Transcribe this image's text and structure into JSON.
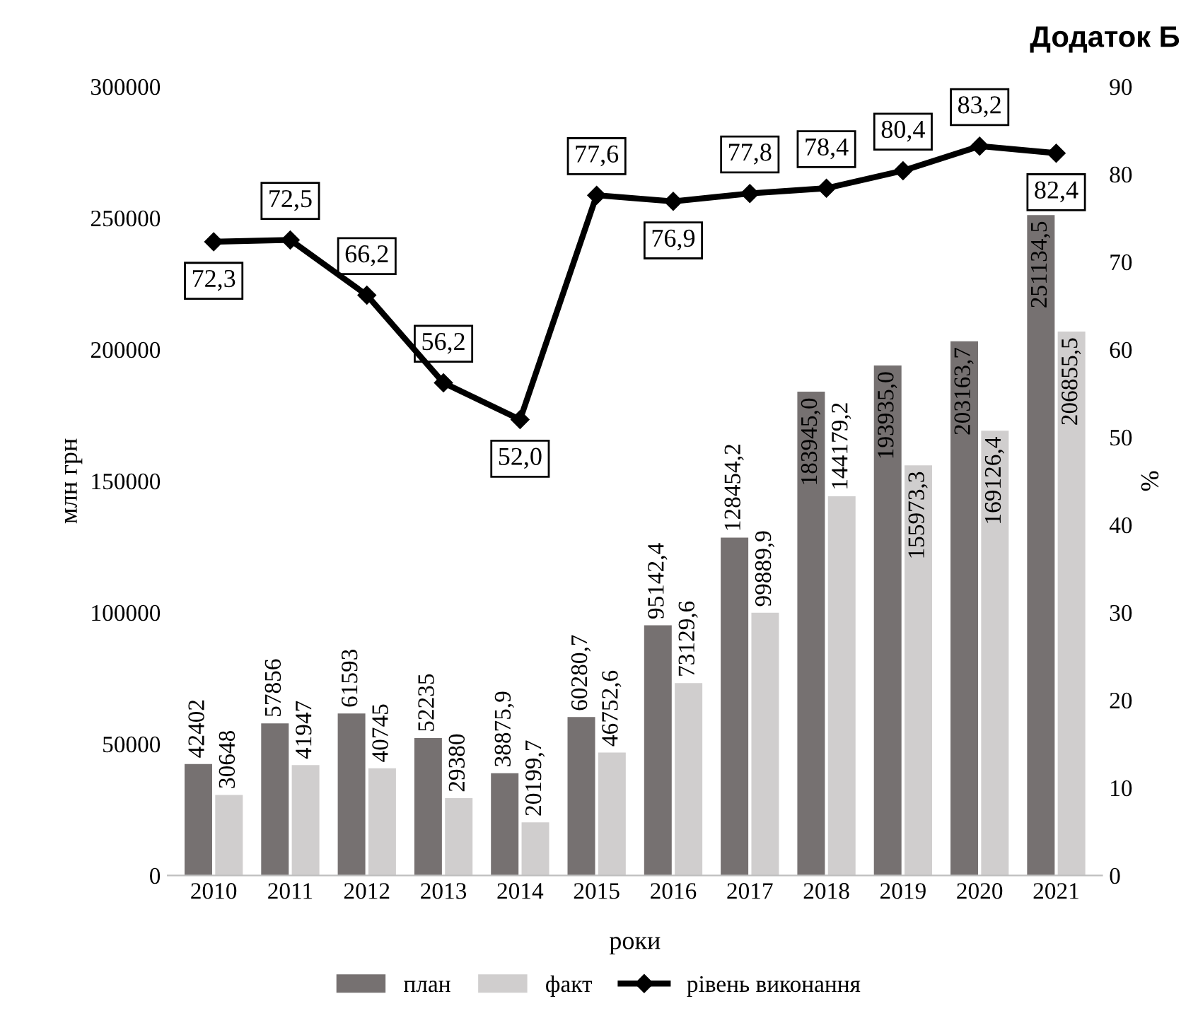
{
  "chart_data": {
    "type": "bar",
    "title": "Додаток Б",
    "xlabel": "роки",
    "ylabel": "млн грн",
    "y2label": "%",
    "categories": [
      "2010",
      "2011",
      "2012",
      "2013",
      "2014",
      "2015",
      "2016",
      "2017",
      "2018",
      "2019",
      "2020",
      "2021"
    ],
    "series": [
      {
        "name": "план",
        "color": "#767171",
        "values": [
          42402,
          57856,
          61593,
          52235,
          38875.9,
          60280.7,
          95142.4,
          128454.2,
          183945.0,
          193935.0,
          203163.7,
          251134.5
        ],
        "value_labels": [
          "42402",
          "57856",
          "61593",
          "52235",
          "38875,9",
          "60280,7",
          "95142,4",
          "128454,2",
          "183945,0",
          "193935,0",
          "203163,7",
          "251134,5"
        ]
      },
      {
        "name": "факт",
        "color": "#d0cece",
        "values": [
          30648,
          41947,
          40745,
          29380,
          20199.7,
          46752.6,
          73129.6,
          99889.9,
          144179.2,
          155973.3,
          169126.4,
          206855.5
        ],
        "value_labels": [
          "30648",
          "41947",
          "40745",
          "29380",
          "20199,7",
          "46752,6",
          "73129,6",
          "99889,9",
          "144179,2",
          "155973,3",
          "169126,4",
          "206855,5"
        ]
      },
      {
        "name": "рівень виконання",
        "type": "line",
        "axis": "y2",
        "color": "#000000",
        "marker": "diamond",
        "values": [
          72.3,
          72.5,
          66.2,
          56.2,
          52.0,
          77.6,
          76.9,
          77.8,
          78.4,
          80.4,
          83.2,
          82.4
        ],
        "value_labels": [
          "72,3",
          "72,5",
          "66,2",
          "56,2",
          "52,0",
          "77,6",
          "76,9",
          "77,8",
          "78,4",
          "80,4",
          "83,2",
          "82,4"
        ]
      }
    ],
    "ylim": [
      0,
      300000
    ],
    "yticks": [
      0,
      50000,
      100000,
      150000,
      200000,
      250000,
      300000
    ],
    "y2lim": [
      0,
      90
    ],
    "y2ticks": [
      0,
      10,
      20,
      30,
      40,
      50,
      60,
      70,
      80,
      90
    ],
    "grid": false,
    "legend": "bottom"
  }
}
